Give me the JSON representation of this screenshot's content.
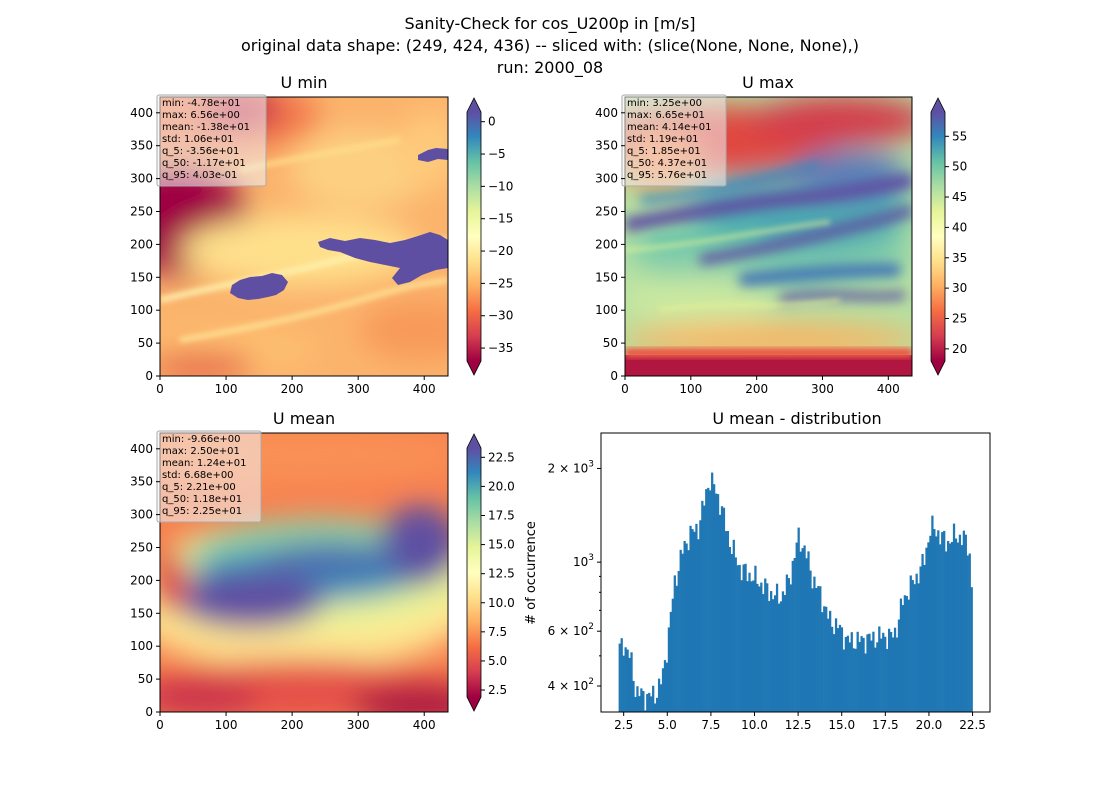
{
  "figure": {
    "title_lines": [
      "Sanity-Check for cos_U200p in [m/s]",
      "original data shape: (249, 424, 436) -- sliced with: (slice(None, None, None),)",
      "run: 2000_08"
    ]
  },
  "colors": {
    "spectral": [
      "#9e0142",
      "#d53e4f",
      "#f46d43",
      "#fdae61",
      "#fee08b",
      "#ffffbf",
      "#e6f598",
      "#abdda4",
      "#66c2a5",
      "#3288bd",
      "#5e4fa2"
    ],
    "hist_bar": "#1f77b4",
    "stats_box_bg": "#f2f2f2",
    "stats_box_border": "#aaaaaa"
  },
  "chart_data": [
    {
      "type": "heatmap",
      "title": "U min",
      "xlim": [
        0,
        436
      ],
      "ylim": [
        0,
        424
      ],
      "x_ticks": [
        "0",
        "100",
        "200",
        "300",
        "400"
      ],
      "y_ticks": [
        "0",
        "50",
        "100",
        "150",
        "200",
        "250",
        "300",
        "350",
        "400"
      ],
      "colorbar": {
        "vmin": -37,
        "vmax": 1.5,
        "ticks": [
          "0",
          "−5",
          "−10",
          "−15",
          "−20",
          "−25",
          "−30",
          "−35"
        ],
        "tick_values": [
          0,
          -5,
          -10,
          -15,
          -20,
          -25,
          -30,
          -35
        ]
      },
      "stats": [
        "min: -4.78e+01",
        "max: 6.56e+00",
        "mean: -1.38e+01",
        "std: 1.06e+01",
        "q_5: -3.56e+01",
        "q_50: -1.17e+01",
        "q_95: 4.03e-01"
      ]
    },
    {
      "type": "heatmap",
      "title": "U max",
      "xlim": [
        0,
        436
      ],
      "ylim": [
        0,
        424
      ],
      "x_ticks": [
        "0",
        "100",
        "200",
        "300",
        "400"
      ],
      "y_ticks": [
        "0",
        "50",
        "100",
        "150",
        "200",
        "250",
        "300",
        "350",
        "400"
      ],
      "colorbar": {
        "vmin": 18,
        "vmax": 59,
        "ticks": [
          "20",
          "25",
          "30",
          "35",
          "40",
          "45",
          "50",
          "55"
        ],
        "tick_values": [
          20,
          25,
          30,
          35,
          40,
          45,
          50,
          55
        ]
      },
      "stats": [
        "min: 3.25e+00",
        "max: 6.65e+01",
        "mean: 4.14e+01",
        "std: 1.19e+01",
        "q_5: 1.85e+01",
        "q_50: 4.37e+01",
        "q_95: 5.76e+01"
      ]
    },
    {
      "type": "heatmap",
      "title": "U mean",
      "xlim": [
        0,
        436
      ],
      "ylim": [
        0,
        424
      ],
      "x_ticks": [
        "0",
        "100",
        "200",
        "300",
        "400"
      ],
      "y_ticks": [
        "0",
        "50",
        "100",
        "150",
        "200",
        "250",
        "300",
        "350",
        "400"
      ],
      "colorbar": {
        "vmin": 1.9,
        "vmax": 23.3,
        "ticks": [
          "2.5",
          "5.0",
          "7.5",
          "10.0",
          "12.5",
          "15.0",
          "17.5",
          "20.0",
          "22.5"
        ],
        "tick_values": [
          2.5,
          5.0,
          7.5,
          10.0,
          12.5,
          15.0,
          17.5,
          20.0,
          22.5
        ]
      },
      "stats": [
        "min: -9.66e+00",
        "max: 2.50e+01",
        "mean: 1.24e+01",
        "std: 6.68e+00",
        "q_5: 2.21e+00",
        "q_50: 1.18e+01",
        "q_95: 2.25e+01"
      ]
    },
    {
      "type": "bar",
      "title": "U mean - distribution",
      "ylabel": "# of occurrence",
      "yscale": "log",
      "xlim": [
        1.2,
        23.5
      ],
      "ylim": [
        330,
        2600
      ],
      "x_ticks": [
        "2.5",
        "5.0",
        "7.5",
        "10.0",
        "12.5",
        "15.0",
        "17.5",
        "20.0",
        "22.5"
      ],
      "x_tick_values": [
        2.5,
        5.0,
        7.5,
        10.0,
        12.5,
        15.0,
        17.5,
        20.0,
        22.5
      ],
      "y_ticks": [
        {
          "value": 400,
          "base": "4 × 10",
          "exp": "2"
        },
        {
          "value": 600,
          "base": "6 × 10",
          "exp": "2"
        },
        {
          "value": 1000,
          "base": "10",
          "exp": "3"
        },
        {
          "value": 2000,
          "base": "2 × 10",
          "exp": "3"
        }
      ],
      "bin_start": 2.21,
      "bin_end": 22.5,
      "profile_x": [
        2.2,
        2.5,
        2.9,
        3.2,
        3.7,
        4.3,
        4.7,
        5.0,
        5.4,
        5.9,
        6.3,
        6.8,
        7.1,
        7.4,
        7.7,
        8.1,
        8.6,
        9.2,
        10.0,
        10.6,
        11.0,
        11.5,
        12.0,
        12.5,
        12.9,
        13.3,
        13.8,
        14.3,
        14.8,
        15.3,
        16.0,
        16.8,
        17.4,
        17.8,
        18.1,
        18.5,
        18.9,
        19.3,
        19.7,
        20.1,
        20.5,
        21.0,
        21.5,
        22.0,
        22.3,
        22.5
      ],
      "profile_y": [
        520,
        550,
        490,
        385,
        370,
        375,
        420,
        540,
        850,
        1100,
        1230,
        1300,
        1550,
        1850,
        1750,
        1500,
        1150,
        950,
        890,
        830,
        790,
        770,
        880,
        1200,
        1100,
        900,
        780,
        650,
        620,
        560,
        560,
        570,
        580,
        575,
        600,
        750,
        830,
        900,
        1000,
        1300,
        1250,
        1150,
        1220,
        1190,
        1120,
        760
      ]
    }
  ]
}
